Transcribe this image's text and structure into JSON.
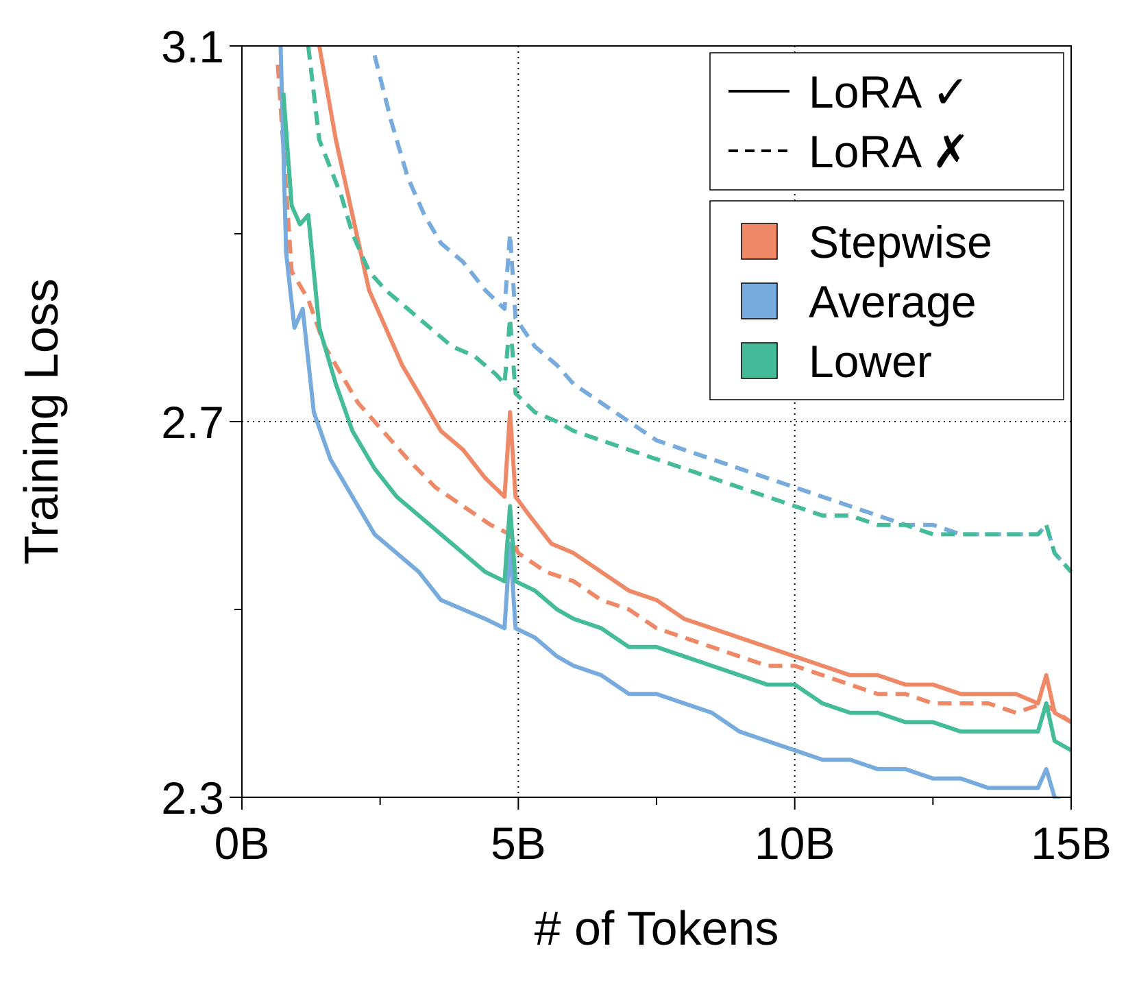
{
  "chart_data": {
    "type": "line",
    "xlabel": "# of Tokens",
    "ylabel": "Training Loss",
    "xlim": [
      0,
      15
    ],
    "ylim": [
      2.3,
      3.1
    ],
    "x_ticks": [
      {
        "value": 0,
        "label": "0B"
      },
      {
        "value": 5,
        "label": "5B"
      },
      {
        "value": 10,
        "label": "10B"
      },
      {
        "value": 15,
        "label": "15B"
      }
    ],
    "x_minor_ticks": [
      2.5,
      7.5,
      12.5
    ],
    "y_ticks": [
      {
        "value": 2.3,
        "label": "2.3"
      },
      {
        "value": 2.7,
        "label": "2.7"
      },
      {
        "value": 3.1,
        "label": "3.1"
      }
    ],
    "y_minor_ticks": [
      2.5,
      2.9
    ],
    "grid": {
      "x": [
        5,
        10
      ],
      "y": [
        2.7
      ],
      "style": "dotted"
    },
    "legend_style": [
      {
        "label": "LoRA ✓",
        "dash": "solid"
      },
      {
        "label": "LoRA ✗",
        "dash": "dashed"
      }
    ],
    "legend_color": [
      {
        "label": "Stepwise",
        "color": "#ee8866"
      },
      {
        "label": "Average",
        "color": "#77aadd"
      },
      {
        "label": "Lower",
        "color": "#44bb99"
      }
    ],
    "series": [
      {
        "name": "Stepwise LoRA ✗",
        "color": "#ee8866",
        "dash": "dashed",
        "x": [
          0.65,
          0.9,
          1.2,
          1.5,
          1.8,
          2.1,
          2.4,
          2.7,
          3.0,
          3.5,
          4.0,
          4.5,
          4.85,
          5.0,
          5.5,
          6.0,
          6.5,
          7.0,
          7.5,
          8.0,
          8.5,
          9.0,
          9.5,
          10.0,
          10.5,
          11.0,
          11.5,
          12.0,
          12.5,
          13.0,
          13.5,
          14.0,
          14.5,
          15.0
        ],
        "y": [
          3.08,
          2.86,
          2.83,
          2.78,
          2.75,
          2.72,
          2.7,
          2.68,
          2.66,
          2.63,
          2.61,
          2.59,
          2.58,
          2.56,
          2.54,
          2.53,
          2.51,
          2.5,
          2.48,
          2.47,
          2.46,
          2.45,
          2.44,
          2.44,
          2.43,
          2.42,
          2.41,
          2.41,
          2.4,
          2.4,
          2.4,
          2.39,
          2.4,
          2.38
        ]
      },
      {
        "name": "Stepwise LoRA ✓",
        "color": "#ee8866",
        "dash": "solid",
        "x": [
          1.4,
          1.7,
          2.0,
          2.3,
          2.6,
          2.9,
          3.2,
          3.6,
          4.0,
          4.4,
          4.75,
          4.85,
          4.95,
          5.2,
          5.6,
          6.0,
          6.5,
          7.0,
          7.5,
          8.0,
          8.5,
          9.0,
          9.5,
          10.0,
          10.5,
          11.0,
          11.5,
          12.0,
          12.5,
          13.0,
          13.5,
          14.0,
          14.4,
          14.55,
          14.7,
          15.0
        ],
        "y": [
          3.1,
          3.0,
          2.92,
          2.84,
          2.8,
          2.76,
          2.73,
          2.69,
          2.67,
          2.64,
          2.62,
          2.71,
          2.62,
          2.6,
          2.57,
          2.56,
          2.54,
          2.52,
          2.51,
          2.49,
          2.48,
          2.47,
          2.46,
          2.45,
          2.44,
          2.43,
          2.43,
          2.42,
          2.42,
          2.41,
          2.41,
          2.41,
          2.4,
          2.43,
          2.39,
          2.38
        ]
      },
      {
        "name": "Average LoRA ✗",
        "color": "#77aadd",
        "dash": "dashed",
        "x": [
          2.4,
          2.7,
          3.0,
          3.3,
          3.6,
          4.0,
          4.4,
          4.75,
          4.85,
          4.95,
          5.3,
          5.7,
          6.0,
          6.5,
          7.0,
          7.5,
          8.0,
          8.5,
          9.0,
          9.5,
          10.0,
          10.5,
          11.0,
          11.5,
          12.0,
          12.5,
          13.0,
          13.5,
          14.0,
          14.4,
          14.55,
          14.7,
          15.0
        ],
        "y": [
          3.09,
          3.02,
          2.96,
          2.92,
          2.89,
          2.87,
          2.84,
          2.82,
          2.9,
          2.81,
          2.78,
          2.76,
          2.74,
          2.72,
          2.7,
          2.68,
          2.67,
          2.66,
          2.65,
          2.64,
          2.63,
          2.62,
          2.61,
          2.6,
          2.59,
          2.59,
          2.58,
          2.58,
          2.58,
          2.58,
          2.59,
          2.56,
          2.54
        ]
      },
      {
        "name": "Average LoRA ✓",
        "color": "#77aadd",
        "dash": "solid",
        "x": [
          0.7,
          0.8,
          0.95,
          1.1,
          1.3,
          1.6,
          2.0,
          2.4,
          2.8,
          3.2,
          3.6,
          4.0,
          4.4,
          4.75,
          4.85,
          4.95,
          5.3,
          5.7,
          6.0,
          6.5,
          7.0,
          7.5,
          8.0,
          8.5,
          9.0,
          9.5,
          10.0,
          10.5,
          11.0,
          11.5,
          12.0,
          12.5,
          13.0,
          13.5,
          14.0,
          14.4,
          14.55,
          14.7,
          15.0
        ],
        "y": [
          3.1,
          2.88,
          2.8,
          2.82,
          2.71,
          2.66,
          2.62,
          2.58,
          2.56,
          2.54,
          2.51,
          2.5,
          2.49,
          2.48,
          2.57,
          2.48,
          2.47,
          2.45,
          2.44,
          2.43,
          2.41,
          2.41,
          2.4,
          2.39,
          2.37,
          2.36,
          2.35,
          2.34,
          2.34,
          2.33,
          2.33,
          2.32,
          2.32,
          2.31,
          2.31,
          2.31,
          2.33,
          2.3,
          2.29
        ]
      },
      {
        "name": "Lower LoRA ✗",
        "color": "#44bb99",
        "dash": "dashed",
        "x": [
          1.2,
          1.4,
          1.6,
          1.8,
          2.0,
          2.3,
          2.6,
          3.0,
          3.4,
          3.8,
          4.2,
          4.6,
          4.75,
          4.85,
          4.95,
          5.3,
          5.7,
          6.0,
          6.5,
          7.0,
          7.5,
          8.0,
          8.5,
          9.0,
          9.5,
          10.0,
          10.5,
          11.0,
          11.5,
          12.0,
          12.5,
          13.0,
          13.5,
          14.0,
          14.4,
          14.55,
          14.7,
          15.0
        ],
        "y": [
          3.1,
          3.0,
          2.97,
          2.94,
          2.9,
          2.86,
          2.84,
          2.82,
          2.8,
          2.78,
          2.77,
          2.75,
          2.74,
          2.81,
          2.73,
          2.71,
          2.7,
          2.69,
          2.68,
          2.67,
          2.66,
          2.65,
          2.64,
          2.63,
          2.62,
          2.61,
          2.6,
          2.6,
          2.59,
          2.59,
          2.58,
          2.58,
          2.58,
          2.58,
          2.58,
          2.59,
          2.56,
          2.54
        ]
      },
      {
        "name": "Lower LoRA ✓",
        "color": "#44bb99",
        "dash": "solid",
        "x": [
          0.75,
          0.9,
          1.05,
          1.2,
          1.4,
          1.7,
          2.0,
          2.4,
          2.8,
          3.2,
          3.6,
          4.0,
          4.4,
          4.75,
          4.85,
          4.95,
          5.3,
          5.7,
          6.0,
          6.5,
          7.0,
          7.5,
          8.0,
          8.5,
          9.0,
          9.5,
          10.0,
          10.5,
          11.0,
          11.5,
          12.0,
          12.5,
          13.0,
          13.5,
          14.0,
          14.4,
          14.55,
          14.7,
          15.0
        ],
        "y": [
          3.05,
          2.93,
          2.91,
          2.92,
          2.8,
          2.74,
          2.69,
          2.65,
          2.62,
          2.6,
          2.58,
          2.56,
          2.54,
          2.53,
          2.61,
          2.53,
          2.52,
          2.5,
          2.49,
          2.48,
          2.46,
          2.46,
          2.45,
          2.44,
          2.43,
          2.42,
          2.42,
          2.4,
          2.39,
          2.39,
          2.38,
          2.38,
          2.37,
          2.37,
          2.37,
          2.37,
          2.4,
          2.36,
          2.35
        ]
      }
    ]
  }
}
